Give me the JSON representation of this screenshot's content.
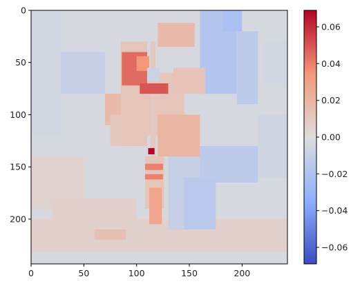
{
  "chart_data": {
    "type": "heatmap",
    "title": "",
    "xlabel": "",
    "ylabel": "",
    "colormap": "coolwarm",
    "x_range": [
      0,
      243
    ],
    "y_range": [
      0,
      243
    ],
    "y_inverted": true,
    "x_ticks": [
      0,
      50,
      100,
      150,
      200
    ],
    "x_tick_labels": [
      "0",
      "50",
      "100",
      "150",
      "200"
    ],
    "y_ticks": [
      0,
      50,
      100,
      150,
      200
    ],
    "y_tick_labels": [
      "0",
      "50",
      "100",
      "150",
      "200"
    ],
    "colorbar": {
      "vmin": -0.069,
      "vmax": 0.069,
      "ticks": [
        -0.06,
        -0.04,
        -0.02,
        0.0,
        0.02,
        0.04,
        0.06
      ],
      "tick_labels": [
        "−0.06",
        "−0.04",
        "−0.02",
        "0.00",
        "0.02",
        "0.04",
        "0.06"
      ]
    },
    "background_value": -0.003,
    "regions": [
      {
        "x0": 0,
        "x1": 243,
        "y0": 200,
        "y1": 243,
        "value": 0.006
      },
      {
        "x0": 0,
        "x1": 243,
        "y0": 232,
        "y1": 243,
        "value": -0.002
      },
      {
        "x0": 0,
        "x1": 28,
        "y0": 0,
        "y1": 120,
        "value": -0.005
      },
      {
        "x0": 28,
        "x1": 70,
        "y0": 40,
        "y1": 80,
        "value": -0.01
      },
      {
        "x0": 0,
        "x1": 50,
        "y0": 140,
        "y1": 190,
        "value": 0.005
      },
      {
        "x0": 20,
        "x1": 100,
        "y0": 180,
        "y1": 230,
        "value": 0.006
      },
      {
        "x0": 60,
        "x1": 90,
        "y0": 210,
        "y1": 220,
        "value": 0.014
      },
      {
        "x0": 160,
        "x1": 195,
        "y0": 0,
        "y1": 80,
        "value": -0.018
      },
      {
        "x0": 182,
        "x1": 200,
        "y0": 0,
        "y1": 20,
        "value": -0.022
      },
      {
        "x0": 195,
        "x1": 215,
        "y0": 20,
        "y1": 90,
        "value": -0.014
      },
      {
        "x0": 220,
        "x1": 243,
        "y0": 30,
        "y1": 70,
        "value": -0.005
      },
      {
        "x0": 215,
        "x1": 243,
        "y0": 100,
        "y1": 160,
        "value": -0.006
      },
      {
        "x0": 155,
        "x1": 215,
        "y0": 130,
        "y1": 165,
        "value": -0.014
      },
      {
        "x0": 130,
        "x1": 160,
        "y0": 100,
        "y1": 210,
        "value": -0.01
      },
      {
        "x0": 145,
        "x1": 175,
        "y0": 160,
        "y1": 210,
        "value": -0.015
      },
      {
        "x0": 70,
        "x1": 100,
        "y0": 80,
        "y1": 110,
        "value": 0.018
      },
      {
        "x0": 75,
        "x1": 95,
        "y0": 100,
        "y1": 130,
        "value": 0.01
      },
      {
        "x0": 85,
        "x1": 110,
        "y0": 30,
        "y1": 130,
        "value": 0.012
      },
      {
        "x0": 100,
        "x1": 145,
        "y0": 60,
        "y1": 120,
        "value": 0.012
      },
      {
        "x0": 120,
        "x1": 160,
        "y0": 100,
        "y1": 140,
        "value": 0.02
      },
      {
        "x0": 135,
        "x1": 165,
        "y0": 55,
        "y1": 80,
        "value": 0.013
      },
      {
        "x0": 120,
        "x1": 155,
        "y0": 12,
        "y1": 35,
        "value": 0.018
      },
      {
        "x0": 113,
        "x1": 118,
        "y0": 30,
        "y1": 150,
        "value": 0.01
      },
      {
        "x0": 86,
        "x1": 110,
        "y0": 40,
        "y1": 72,
        "value": 0.045
      },
      {
        "x0": 100,
        "x1": 112,
        "y0": 44,
        "y1": 58,
        "value": 0.035
      },
      {
        "x0": 103,
        "x1": 130,
        "y0": 70,
        "y1": 80,
        "value": 0.05
      },
      {
        "x0": 110,
        "x1": 122,
        "y0": 55,
        "y1": 68,
        "value": -0.008
      },
      {
        "x0": 108,
        "x1": 126,
        "y0": 140,
        "y1": 190,
        "value": 0.012
      },
      {
        "x0": 112,
        "x1": 124,
        "y0": 170,
        "y1": 205,
        "value": 0.028
      },
      {
        "x0": 108,
        "x1": 125,
        "y0": 147,
        "y1": 153,
        "value": 0.04
      },
      {
        "x0": 108,
        "x1": 125,
        "y0": 157,
        "y1": 162,
        "value": 0.04
      },
      {
        "x0": 111,
        "x1": 117,
        "y0": 132,
        "y1": 138,
        "value": 0.069
      }
    ]
  }
}
